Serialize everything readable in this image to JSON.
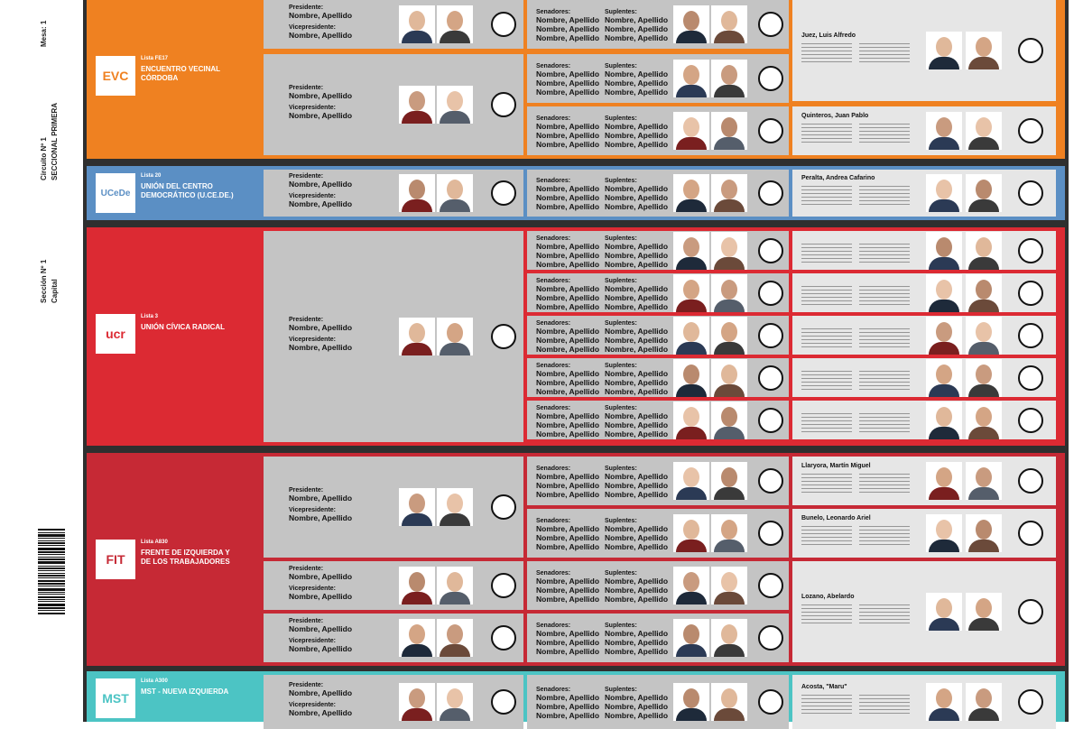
{
  "margin": {
    "mesa_label": "Mesa:",
    "mesa_value": "1",
    "circuito_label": "Circuito Nº",
    "circuito_value": "1",
    "circuito_name": "SECCIONAL PRIMERA",
    "seccion_label": "Sección Nº",
    "seccion_value": "1",
    "seccion_name": "Capital"
  },
  "labels": {
    "presidente": "Presidente:",
    "vicepresidente": "Vicepresidente:",
    "senadores": "Senadores:",
    "suplentes": "Suplentes:",
    "placeholder_name": "Nombre, Apellido"
  },
  "parties": [
    {
      "id": "evc",
      "lista": "Lista FE17",
      "name": "ENCUENTRO VECINAL CÓRDOBA",
      "logo_text": "EVC",
      "color": "#ef8121",
      "gov": [
        "Juez, Luis Alfredo",
        "Quinteros, Juan Pablo"
      ]
    },
    {
      "id": "ucede",
      "lista": "Lista 20",
      "name": "UNIÓN DEL CENTRO DEMOCRÁTICO (U.CE.DE.)",
      "logo_text": "UCeDe",
      "color": "#5b8fc4",
      "gov": [
        "Peralta, Andrea Cafarino"
      ]
    },
    {
      "id": "ucr",
      "lista": "Lista 3",
      "name": "UNIÓN CÍVICA RADICAL",
      "logo_text": "ucr",
      "color": "#dc2a33",
      "gov": []
    },
    {
      "id": "fit",
      "lista": "Lista A830",
      "name": "FRENTE DE IZQUIERDA Y DE LOS TRABAJADORES",
      "logo_text": "FIT",
      "color": "#c62935",
      "gov": [
        "Llaryora, Martín Miguel",
        "Bunelo, Leonardo Ariel",
        "Lozano, Abelardo"
      ]
    },
    {
      "id": "mst",
      "lista": "Lista A300",
      "name": "MST - NUEVA IZQUIERDA",
      "logo_text": "MST",
      "color": "#4cc4c4",
      "gov": [
        "Acosta, \"Maru\""
      ]
    }
  ],
  "colors": {
    "gray_cell": "#c4c4c4",
    "light_cell": "#e6e6e6",
    "frame": "#2f2f2f"
  }
}
